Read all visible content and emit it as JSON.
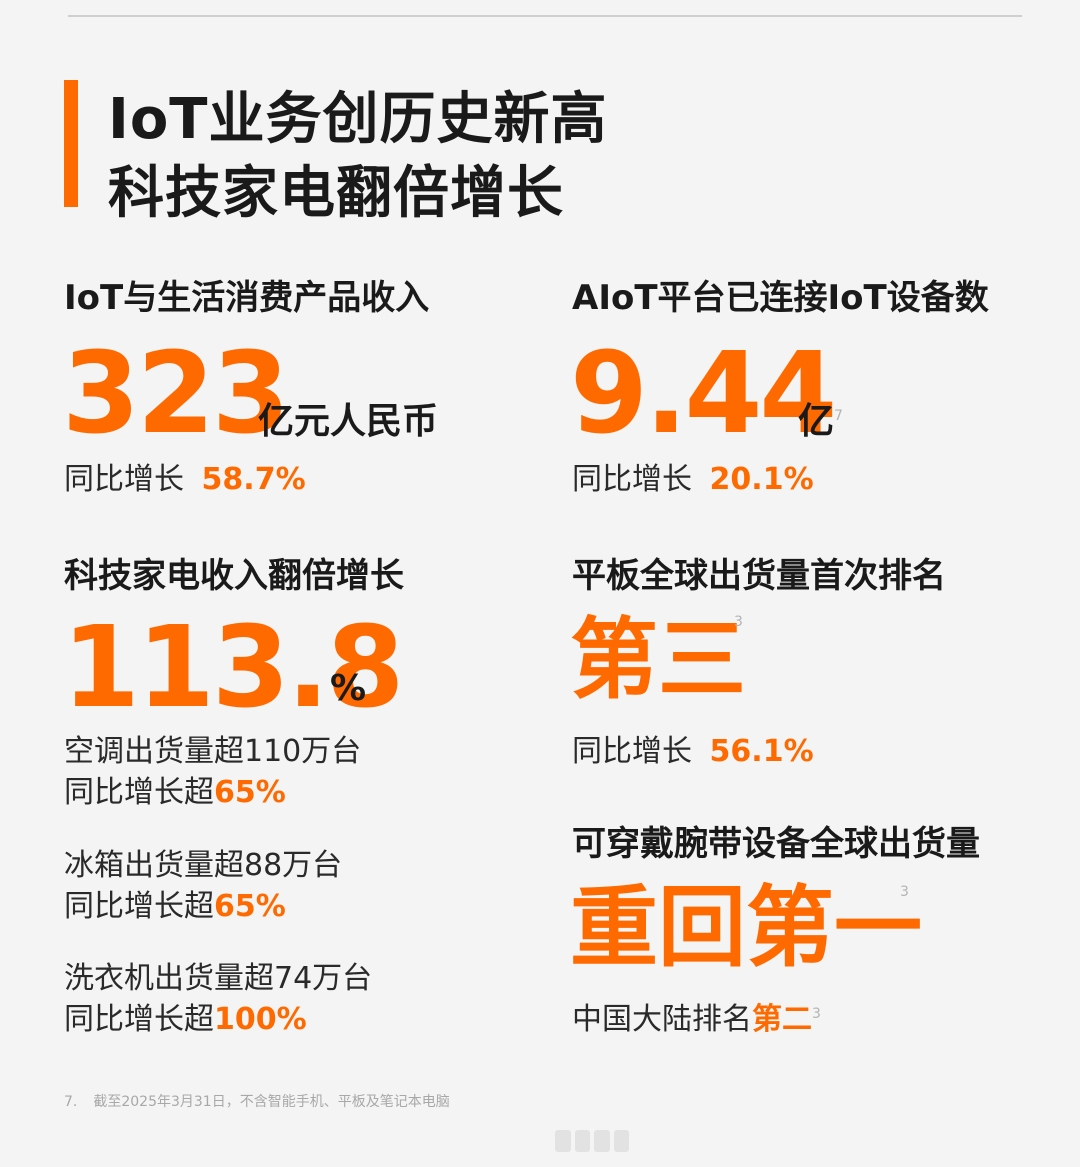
{
  "title": {
    "line1": "IoT业务创历史新高",
    "line2": "科技家电翻倍增长"
  },
  "iot_revenue": {
    "heading": "IoT与生活消费产品收入",
    "value": "323",
    "unit": "亿元人民币",
    "growth_label": "同比增长",
    "growth_value": "58.7%"
  },
  "aiot": {
    "heading": "AIoT平台已连接IoT设备数",
    "value": "9.44",
    "unit": "亿",
    "footnote_ref": "7",
    "growth_label": "同比增长",
    "growth_value": "20.1%"
  },
  "appliances": {
    "heading": "科技家电收入翻倍增长",
    "value": "113.8",
    "unit": "%",
    "items": [
      {
        "line": "空调出货量超110万台",
        "growth_label": "同比增长超",
        "growth_value": "65%"
      },
      {
        "line": "冰箱出货量超88万台",
        "growth_label": "同比增长超",
        "growth_value": "65%"
      },
      {
        "line": "洗衣机出货量超74万台",
        "growth_label": "同比增长超",
        "growth_value": "100%"
      }
    ]
  },
  "tablet": {
    "heading": "平板全球出货量首次排名",
    "value": "第三",
    "footnote_ref": "3",
    "growth_label": "同比增长",
    "growth_value": "56.1%"
  },
  "wearable": {
    "heading": "可穿戴腕带设备全球出货量",
    "value": "重回第一",
    "footnote_ref": "3",
    "china_label": "中国大陆排名",
    "china_value": "第二",
    "china_footnote_ref": "3"
  },
  "footnote": {
    "number": "7.",
    "text": "截至2025年3月31日，不含智能手机、平板及笔记本电脑"
  }
}
